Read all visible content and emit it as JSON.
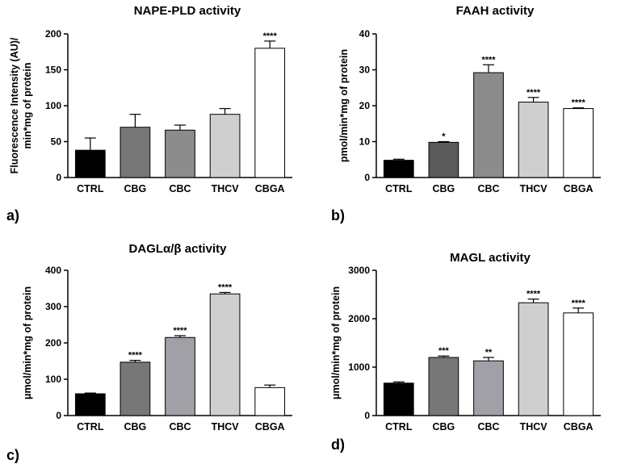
{
  "chart_data": [
    {
      "type": "bar",
      "panel_label": "a)",
      "title": "NAPE-PLD activity",
      "ylabel_lines": [
        "Fluorescence Intensity (AU)/",
        "min*mg of protein"
      ],
      "categories": [
        "CTRL",
        "CBG",
        "CBC",
        "THCV",
        "CBGA"
      ],
      "values": [
        38,
        70,
        66,
        88,
        180
      ],
      "errors": [
        17,
        18,
        7,
        8,
        10
      ],
      "significance": [
        "",
        "",
        "",
        "",
        "****"
      ],
      "colors": [
        "#000000",
        "#777777",
        "#8c8c8c",
        "#cfcfcf",
        "#ffffff"
      ],
      "ylim": [
        0,
        200
      ],
      "yticks": [
        0,
        50,
        100,
        150,
        200
      ]
    },
    {
      "type": "bar",
      "panel_label": "b)",
      "title": "FAAH activity",
      "ylabel_lines": [
        "pmol/min*mg of protein"
      ],
      "categories": [
        "CTRL",
        "CBG",
        "CBC",
        "THCV",
        "CBGA"
      ],
      "values": [
        4.8,
        9.8,
        29.2,
        21.0,
        19.2
      ],
      "errors": [
        0.3,
        0.2,
        2.2,
        1.3,
        0.2
      ],
      "significance": [
        "",
        "*",
        "****",
        "****",
        "****"
      ],
      "colors": [
        "#000000",
        "#5a5a5a",
        "#8c8c8c",
        "#cfcfcf",
        "#ffffff"
      ],
      "ylim": [
        0,
        40
      ],
      "yticks": [
        0,
        10,
        20,
        30,
        40
      ]
    },
    {
      "type": "bar",
      "panel_label": "c)",
      "title": "DAGLα/β activity",
      "ylabel_lines": [
        "μmol/min*mg of protein"
      ],
      "categories": [
        "CTRL",
        "CBG",
        "CBC",
        "THCV",
        "CBGA"
      ],
      "values": [
        60,
        147,
        215,
        335,
        77
      ],
      "errors": [
        2,
        5,
        5,
        4,
        7
      ],
      "significance": [
        "",
        "****",
        "****",
        "****",
        ""
      ],
      "colors": [
        "#000000",
        "#777777",
        "#a0a0a6",
        "#cfcfcf",
        "#ffffff"
      ],
      "ylim": [
        0,
        400
      ],
      "yticks": [
        0,
        100,
        200,
        300,
        400
      ]
    },
    {
      "type": "bar",
      "panel_label": "d)",
      "title": "MAGL activity",
      "ylabel_lines": [
        "μmol/min*mg of protein"
      ],
      "categories": [
        "CTRL",
        "CBG",
        "CBC",
        "THCV",
        "CBGA"
      ],
      "values": [
        670,
        1200,
        1130,
        2330,
        2120
      ],
      "errors": [
        25,
        30,
        70,
        75,
        100
      ],
      "significance": [
        "",
        "***",
        "**",
        "****",
        "****"
      ],
      "colors": [
        "#000000",
        "#777777",
        "#a0a0a6",
        "#cfcfcf",
        "#ffffff"
      ],
      "ylim": [
        0,
        3000
      ],
      "yticks": [
        0,
        1000,
        2000,
        3000
      ]
    }
  ]
}
